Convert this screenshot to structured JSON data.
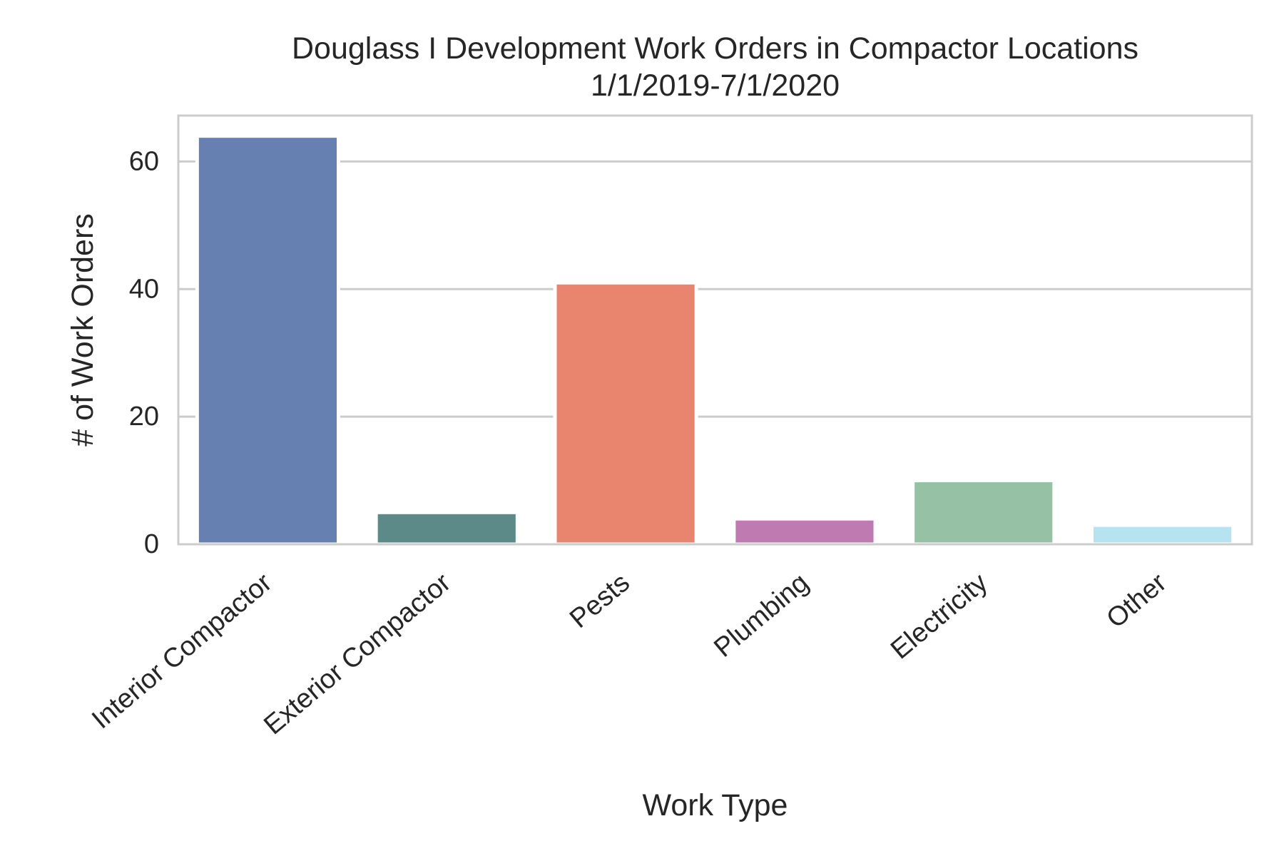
{
  "chart_data": {
    "type": "bar",
    "title": "Douglass I Development Work Orders in Compactor Locations",
    "subtitle": "1/1/2019-7/1/2020",
    "xlabel": "Work Type",
    "ylabel": "# of Work Orders",
    "categories": [
      "Interior Compactor",
      "Exterior Compactor",
      "Pests",
      "Plumbing",
      "Electricity",
      "Other"
    ],
    "values": [
      64,
      5,
      41,
      4,
      10,
      3
    ],
    "colors": [
      "#6681b1",
      "#5b8a89",
      "#e9856f",
      "#be7ab1",
      "#96c1a5",
      "#b5e4f0"
    ],
    "ylim": [
      0,
      67.2
    ],
    "yticks": [
      0,
      20,
      40,
      60
    ],
    "grid": true,
    "legend": "none"
  }
}
